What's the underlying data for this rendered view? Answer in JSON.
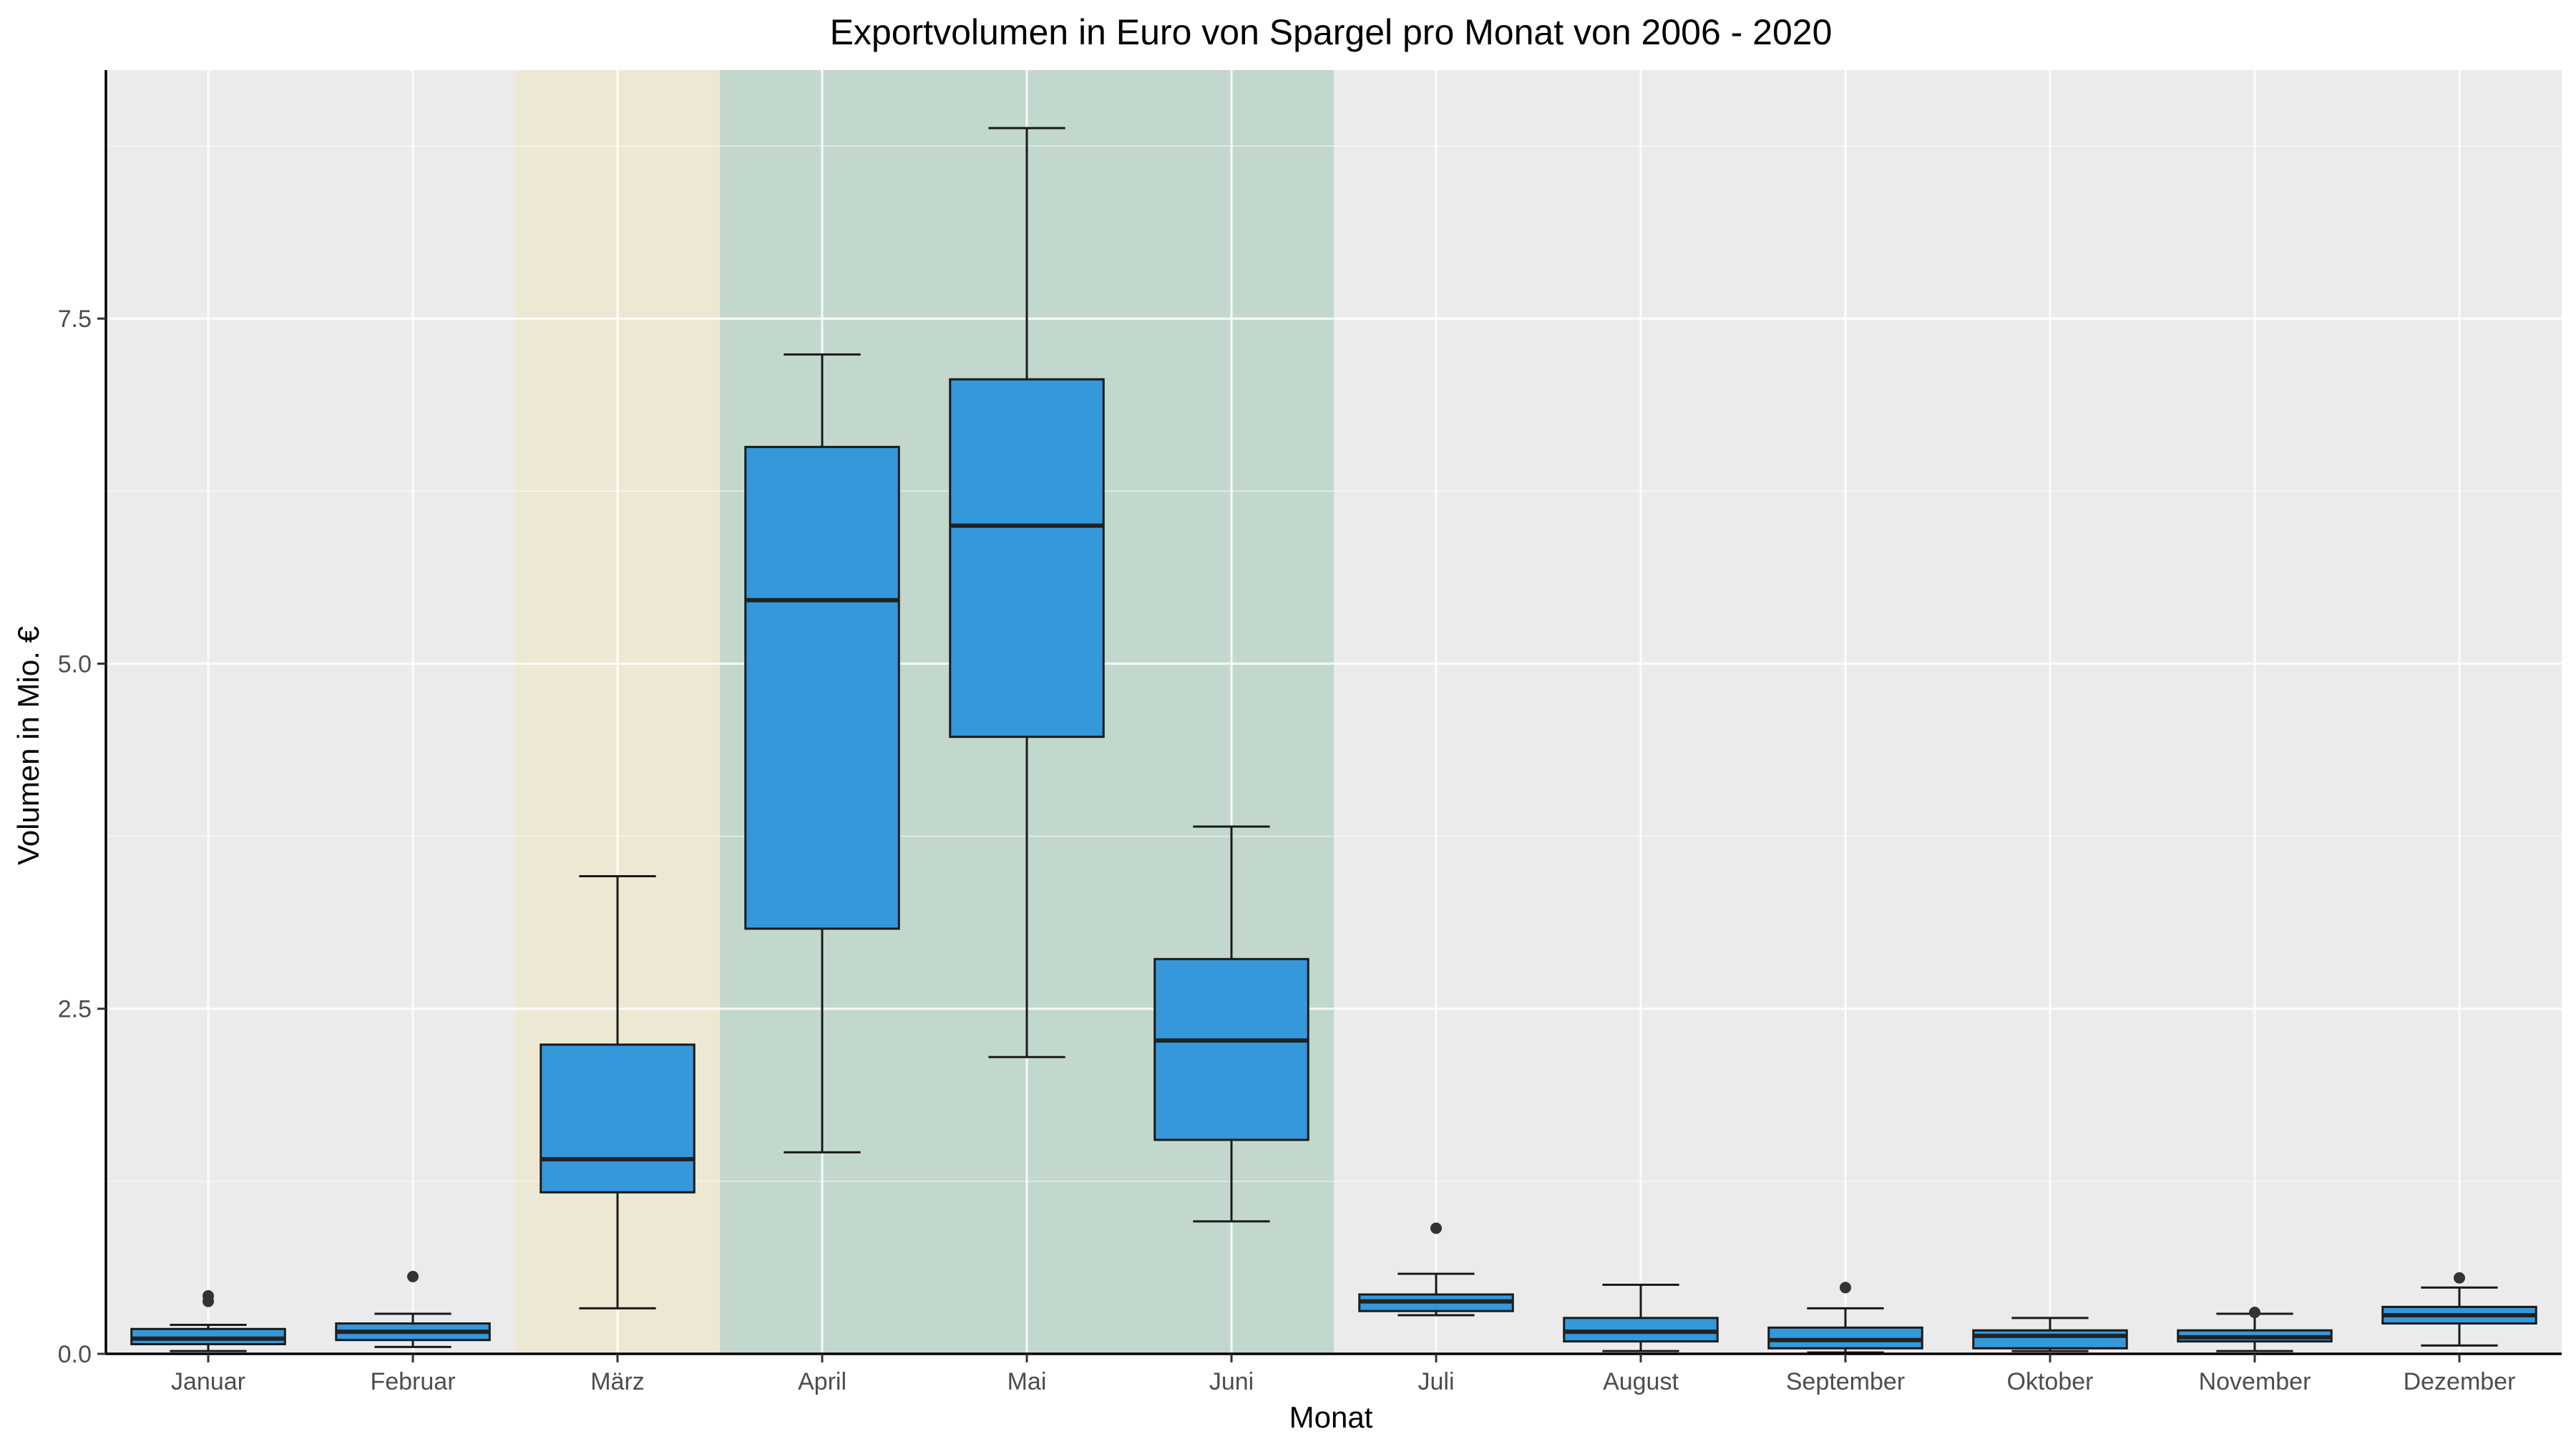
{
  "chart_data": {
    "type": "boxplot",
    "title": "Exportvolumen in Euro von Spargel pro Monat von 2006 - 2020",
    "xlabel": "Monat",
    "ylabel": "Volumen in Mio. €",
    "ylim": [
      0,
      9.3
    ],
    "y_ticks": [
      0,
      2.5,
      5,
      7.5
    ],
    "y_tick_labels": [
      "0.0",
      "2.5",
      "5.0",
      "7.5"
    ],
    "grid": true,
    "legend": "none",
    "colors": {
      "panel": "#ebebeb",
      "grid_major": "#ffffff",
      "box_fill": "#3498db",
      "box_outline": "#1a1a1a",
      "highlight_maerz": "#ede8d3",
      "highlight_apr_jun": "#c3d8cd",
      "axis_line": "#000000",
      "outlier": "#333333"
    },
    "highlight_bands": [
      {
        "from": "März",
        "to": "März",
        "color": "#ede8d3"
      },
      {
        "from": "April",
        "to": "Juni",
        "color": "#c3d8cd"
      }
    ],
    "categories": [
      "Januar",
      "Februar",
      "März",
      "April",
      "Mai",
      "Juni",
      "Juli",
      "August",
      "September",
      "Oktober",
      "November",
      "Dezember"
    ],
    "boxes": [
      {
        "month": "Januar",
        "whisker_low": 0.02,
        "q1": 0.07,
        "median": 0.11,
        "q3": 0.18,
        "whisker_high": 0.21,
        "outliers": [
          0.38,
          0.42
        ]
      },
      {
        "month": "Februar",
        "whisker_low": 0.05,
        "q1": 0.1,
        "median": 0.16,
        "q3": 0.22,
        "whisker_high": 0.29,
        "outliers": [
          0.56
        ]
      },
      {
        "month": "März",
        "whisker_low": 0.33,
        "q1": 1.17,
        "median": 1.41,
        "q3": 2.24,
        "whisker_high": 3.46,
        "outliers": []
      },
      {
        "month": "April",
        "whisker_low": 1.46,
        "q1": 3.08,
        "median": 5.46,
        "q3": 6.57,
        "whisker_high": 7.24,
        "outliers": []
      },
      {
        "month": "Mai",
        "whisker_low": 2.15,
        "q1": 4.47,
        "median": 6.0,
        "q3": 7.06,
        "whisker_high": 8.88,
        "outliers": []
      },
      {
        "month": "Juni",
        "whisker_low": 0.96,
        "q1": 1.55,
        "median": 2.27,
        "q3": 2.86,
        "whisker_high": 3.82,
        "outliers": []
      },
      {
        "month": "Juli",
        "whisker_low": 0.28,
        "q1": 0.31,
        "median": 0.38,
        "q3": 0.43,
        "whisker_high": 0.58,
        "outliers": [
          0.91
        ]
      },
      {
        "month": "August",
        "whisker_low": 0.02,
        "q1": 0.09,
        "median": 0.16,
        "q3": 0.26,
        "whisker_high": 0.5,
        "outliers": []
      },
      {
        "month": "September",
        "whisker_low": 0.01,
        "q1": 0.04,
        "median": 0.1,
        "q3": 0.19,
        "whisker_high": 0.33,
        "outliers": [
          0.48
        ]
      },
      {
        "month": "Oktober",
        "whisker_low": 0.02,
        "q1": 0.04,
        "median": 0.13,
        "q3": 0.17,
        "whisker_high": 0.26,
        "outliers": []
      },
      {
        "month": "November",
        "whisker_low": 0.02,
        "q1": 0.09,
        "median": 0.12,
        "q3": 0.17,
        "whisker_high": 0.29,
        "outliers": [
          0.3
        ]
      },
      {
        "month": "Dezember",
        "whisker_low": 0.06,
        "q1": 0.22,
        "median": 0.28,
        "q3": 0.34,
        "whisker_high": 0.48,
        "outliers": [
          0.55
        ]
      }
    ]
  }
}
